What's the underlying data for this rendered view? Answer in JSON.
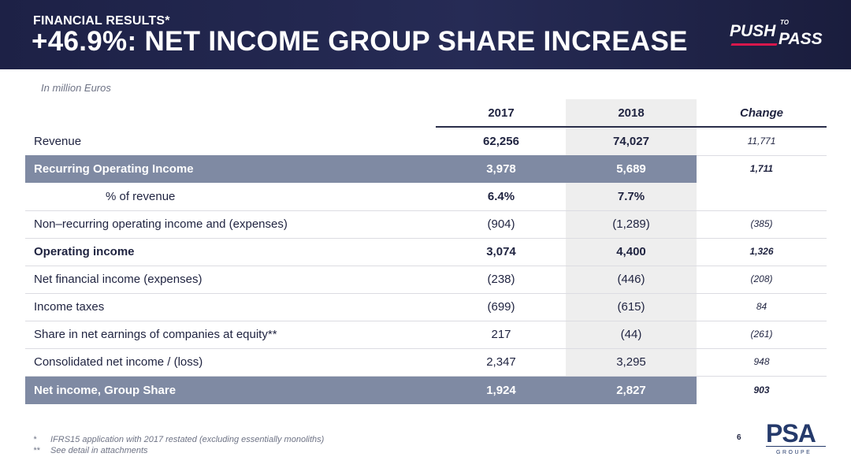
{
  "header": {
    "kicker": "FINANCIAL RESULTS*",
    "title": "+46.9%: NET INCOME GROUP SHARE INCREASE",
    "logo": {
      "word1": "PUSH",
      "word2": "TO",
      "word3": "PASS",
      "accent": "#d8174c"
    }
  },
  "units": "In million Euros",
  "columns": {
    "y2017": "2017",
    "y2018": "2018",
    "change": "Change"
  },
  "rows": [
    {
      "label": "Revenue",
      "v2017": "62,256",
      "v2018": "74,027",
      "change": "11,771"
    },
    {
      "label": "Recurring Operating Income",
      "v2017": "3,978",
      "v2018": "5,689",
      "change": "1,711"
    },
    {
      "label": "% of revenue",
      "v2017": "6.4%",
      "v2018": "7.7%",
      "change": ""
    },
    {
      "label": "Non–recurring operating income and (expenses)",
      "v2017": "(904)",
      "v2018": "(1,289)",
      "change": "(385)"
    },
    {
      "label": "Operating income",
      "v2017": "3,074",
      "v2018": "4,400",
      "change": "1,326"
    },
    {
      "label": "Net financial income (expenses)",
      "v2017": "(238)",
      "v2018": "(446)",
      "change": "(208)"
    },
    {
      "label": "Income taxes",
      "v2017": "(699)",
      "v2018": "(615)",
      "change": "84"
    },
    {
      "label": "Share in net earnings of companies at equity**",
      "v2017": "217",
      "v2018": "(44)",
      "change": "(261)"
    },
    {
      "label": "Consolidated net income / (loss)",
      "v2017": "2,347",
      "v2018": "3,295",
      "change": "948"
    },
    {
      "label": "Net income, Group Share",
      "v2017": "1,924",
      "v2018": "2,827",
      "change": "903"
    }
  ],
  "footnotes": [
    {
      "marker": "*",
      "text": "IFRS15 application with 2017 restated (excluding essentially monoliths)"
    },
    {
      "marker": "**",
      "text": "See detail in attachments"
    }
  ],
  "page_number": "6",
  "brand": {
    "name": "PSA",
    "subtitle": "GROUPE"
  }
}
